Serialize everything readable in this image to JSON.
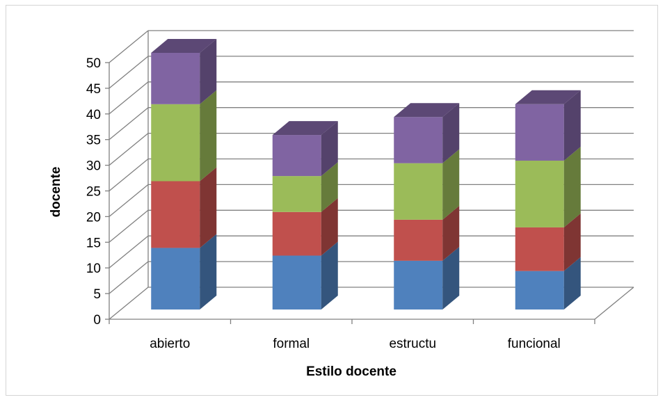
{
  "chart_data": {
    "type": "bar",
    "stacked": true,
    "three_d": true,
    "categories": [
      "abierto",
      "formal",
      "estructu",
      "funcional"
    ],
    "series": [
      {
        "values": [
          12,
          10.5,
          9.5,
          7.5
        ],
        "color": "#4F81BD"
      },
      {
        "values": [
          13,
          8.5,
          8,
          8.5
        ],
        "color": "#C0504D"
      },
      {
        "values": [
          15,
          7,
          11,
          13
        ],
        "color": "#9BBB59"
      },
      {
        "values": [
          10,
          8,
          9,
          11
        ],
        "color": "#8064A2"
      }
    ],
    "xlabel": "Estilo docente",
    "ylabel": "docente",
    "ylim": [
      0,
      50
    ],
    "yticks": [
      0,
      5,
      10,
      15,
      20,
      25,
      30,
      35,
      40,
      45,
      50
    ],
    "grid": true,
    "legend": "none"
  }
}
